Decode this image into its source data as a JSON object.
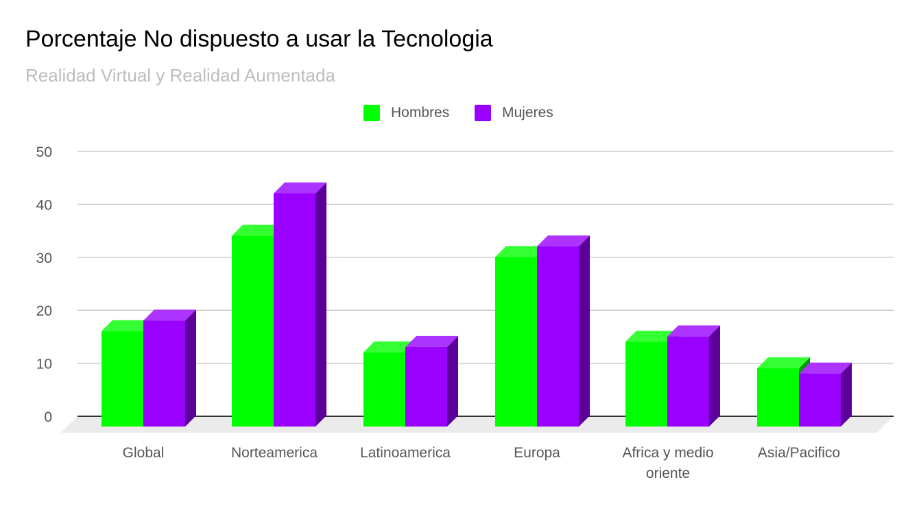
{
  "chart_data": {
    "type": "bar",
    "title": "Porcentaje No dispuesto a usar la Tecnologia",
    "subtitle": "Realidad Virtual y Realidad Aumentada",
    "categories": [
      "Global",
      "Norteamerica",
      "Latinoamerica",
      "Europa",
      "Africa y medio oriente",
      "Asia/Pacifico"
    ],
    "category_lines": [
      [
        "Global"
      ],
      [
        "Norteamerica"
      ],
      [
        "Latinoamerica"
      ],
      [
        "Europa"
      ],
      [
        "Africa y medio",
        "oriente"
      ],
      [
        "Asia/Pacifico"
      ]
    ],
    "series": [
      {
        "name": "Hombres",
        "color": "#00ff00",
        "values": [
          18,
          36,
          14,
          32,
          16,
          11
        ]
      },
      {
        "name": "Mujeres",
        "color": "#9900ff",
        "values": [
          20,
          44,
          15,
          34,
          17,
          10
        ]
      }
    ],
    "ylim": [
      0,
      50
    ],
    "yticks": [
      "0",
      "10",
      "20",
      "30",
      "40",
      "50"
    ],
    "grid": true,
    "legend_position": "top-center",
    "style": "3d"
  }
}
